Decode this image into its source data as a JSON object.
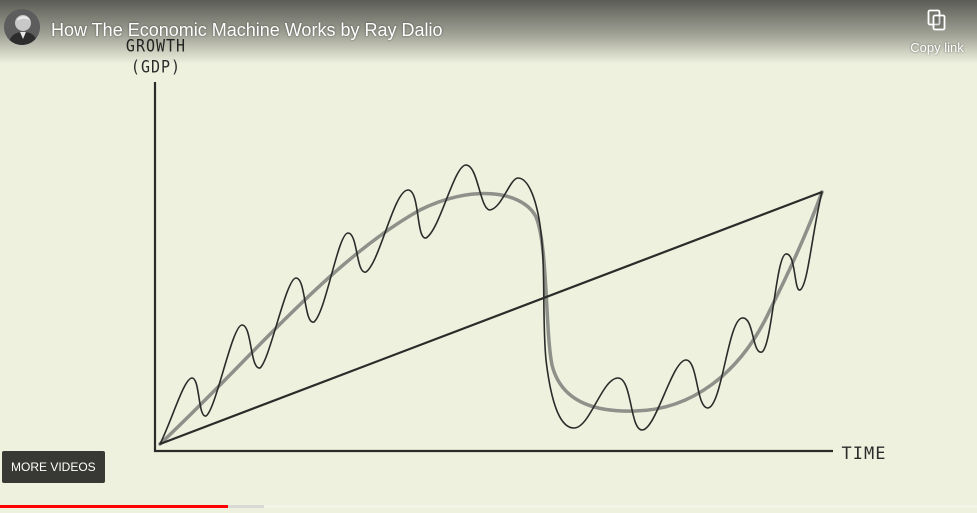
{
  "player": {
    "title": "How The Economic Machine Works by Ray Dalio",
    "copy_link_label": "Copy link",
    "more_videos_label": "MORE VIDEOS",
    "progress_played": 0.233,
    "progress_buffered": 0.27,
    "accent_color": "#ff0000"
  },
  "video_frame": {
    "y_axis_label_line1": "GROWTH",
    "y_axis_label_line2": "(GDP)",
    "x_axis_label": "TIME"
  },
  "icons": {
    "copy": "copy-icon",
    "avatar": "channel-avatar"
  }
}
